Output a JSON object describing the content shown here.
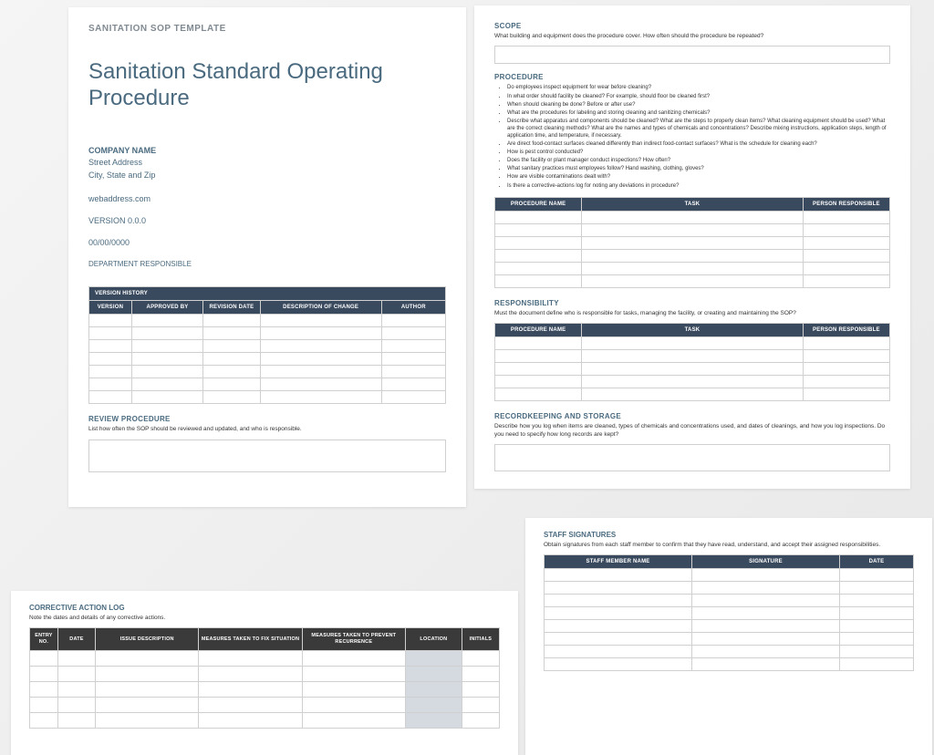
{
  "page1": {
    "header": "SANITATION SOP TEMPLATE",
    "title": "Sanitation Standard Operating Procedure",
    "company_name": "COMPANY NAME",
    "street": "Street Address",
    "city": "City, State and Zip",
    "web": "webaddress.com",
    "version": "VERSION 0.0.0",
    "date": "00/00/0000",
    "dept": "DEPARTMENT RESPONSIBLE",
    "version_history": {
      "title": "VERSION HISTORY",
      "columns": [
        "VERSION",
        "APPROVED BY",
        "REVISION DATE",
        "DESCRIPTION OF CHANGE",
        "AUTHOR"
      ],
      "rows": 7
    },
    "review": {
      "title": "REVIEW PROCEDURE",
      "desc": "List how often the SOP should be reviewed and updated, and who is responsible."
    }
  },
  "page2": {
    "scope": {
      "title": "SCOPE",
      "desc": "What building and equipment does the procedure cover. How often should the procedure be repeated?"
    },
    "procedure": {
      "title": "PROCEDURE",
      "bullets": [
        "Do employees inspect equipment for wear before cleaning?",
        "In what order should facility be cleaned? For example, should floor be cleaned first?",
        "When should cleaning be done? Before or after use?",
        "What are the procedures for labeling and storing cleaning and sanitizing chemicals?",
        "Describe what apparatus and components should be cleaned? What are the steps to properly clean items? What cleaning equipment should be used? What are the correct cleaning methods? What are the names and types of chemicals and concentrations? Describe mixing instructions, application steps, length of application time, and temperature, if necessary.",
        "Are direct food-contact surfaces cleaned differently than indirect food-contact surfaces? What is the schedule for cleaning each?",
        "How is pest control conducted?",
        "Does the facility or plant manager conduct inspections? How often?",
        "What sanitary practices must employees follow? Hand washing, clothing, gloves?",
        "How are visible contaminations dealt with?",
        "Is there a corrective-actions log for noting any deviations in procedure?"
      ],
      "columns": [
        "PROCEDURE NAME",
        "TASK",
        "PERSON RESPONSIBLE"
      ],
      "rows": 6
    },
    "responsibility": {
      "title": "RESPONSIBILITY",
      "desc": "Must the document define who is responsible for tasks, managing the facility, or creating and maintaining the SOP?",
      "columns": [
        "PROCEDURE NAME",
        "TASK",
        "PERSON RESPONSIBLE"
      ],
      "rows": 5
    },
    "recordkeeping": {
      "title": "RECORDKEEPING AND STORAGE",
      "desc": "Describe how you log when items are cleaned, types of chemicals and concentrations used, and dates of cleanings, and how you log inspections. Do you need to specify how long records are kept?"
    }
  },
  "page3": {
    "title": "CORRECTIVE ACTION LOG",
    "desc": "Note the dates and details of any corrective actions.",
    "columns": [
      "ENTRY NO.",
      "DATE",
      "ISSUE DESCRIPTION",
      "MEASURES TAKEN TO FIX SITUATION",
      "MEASURES TAKEN TO PREVENT RECURRENCE",
      "LOCATION",
      "INITIALS"
    ],
    "rows": 5,
    "col_widths": [
      "6%",
      "8%",
      "22%",
      "22%",
      "22%",
      "12%",
      "8%"
    ]
  },
  "page4": {
    "title": "STAFF SIGNATURES",
    "desc": "Obtain signatures from each staff member to confirm that they have read, understand, and accept their assigned responsibilities.",
    "columns": [
      "STAFF MEMBER NAME",
      "SIGNATURE",
      "DATE"
    ],
    "rows": 8,
    "col_widths": [
      "40%",
      "40%",
      "20%"
    ]
  },
  "colors": {
    "header_bg": "#3a4a5e",
    "dark_header_bg": "#3a3a3a",
    "title_color": "#4a6a7f",
    "border": "#d0d0d0",
    "shade": "#d5dae0"
  }
}
